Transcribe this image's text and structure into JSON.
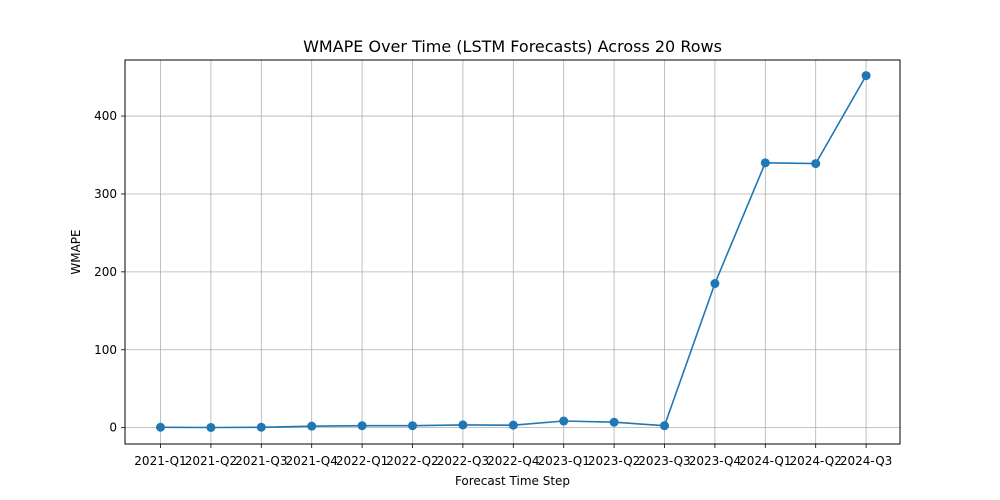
{
  "chart_data": {
    "type": "line",
    "title": "WMAPE Over Time (LSTM Forecasts) Across 20 Rows",
    "xlabel": "Forecast Time Step",
    "ylabel": "WMAPE",
    "categories": [
      "2021-Q1",
      "2021-Q2",
      "2021-Q3",
      "2021-Q4",
      "2022-Q1",
      "2022-Q2",
      "2022-Q3",
      "2022-Q4",
      "2023-Q1",
      "2023-Q2",
      "2023-Q3",
      "2023-Q4",
      "2024-Q1",
      "2024-Q2",
      "2024-Q3"
    ],
    "series": [
      {
        "values": [
          0.5,
          0.2,
          0.5,
          1.9,
          2.5,
          2.5,
          3.5,
          3.2,
          8.5,
          7.0,
          2.5,
          185,
          340,
          339,
          452
        ]
      }
    ],
    "ylim": [
      -21,
      472
    ],
    "yticks": [
      0,
      100,
      200,
      300,
      400
    ],
    "grid": true,
    "colors": {
      "line": "#1f77b4",
      "grid": "#b0b0b0"
    }
  }
}
